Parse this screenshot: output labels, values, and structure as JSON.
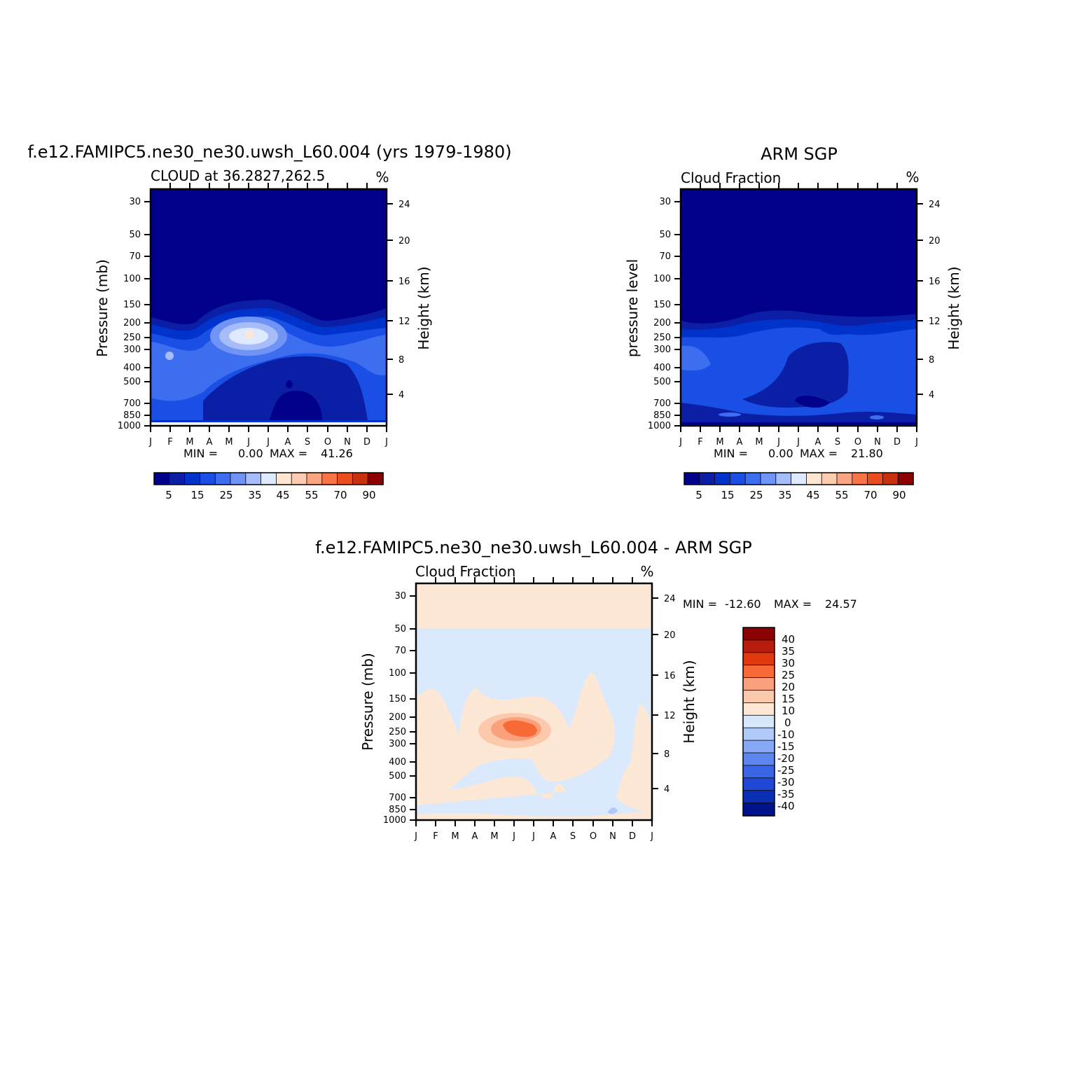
{
  "chart_data": [
    {
      "type": "heatmap",
      "title": "f.e12.FAMIPC5.ne30_ne30.uwsh_L60.004 (yrs 1979-1980)",
      "subtitle": "CLOUD at 36.2827,262.5",
      "units": "%",
      "ylabel": "Pressure (mb)",
      "ylabel_right": "Height (km)",
      "x_ticks": [
        "J",
        "F",
        "M",
        "A",
        "M",
        "J",
        "J",
        "A",
        "S",
        "O",
        "N",
        "D",
        "J"
      ],
      "y_ticks": [
        "30",
        "50",
        "70",
        "100",
        "150",
        "200",
        "250",
        "300",
        "400",
        "500",
        "700",
        "850",
        "1000"
      ],
      "y_ticks_right": [
        "24",
        "20",
        "16",
        "12",
        "8",
        "4"
      ],
      "stats": {
        "min_label": "MIN =",
        "min": "0.00",
        "max_label": "MAX =",
        "max": "41.26"
      },
      "colorbar_labels": [
        "5",
        "15",
        "25",
        "35",
        "45",
        "55",
        "70",
        "90"
      ],
      "features": [
        {
          "month": 5.0,
          "pressure": 250,
          "value": 41.26
        },
        {
          "month": 1.0,
          "pressure": 350,
          "value": 30
        },
        {
          "month": 7.0,
          "pressure": 700,
          "value": 0
        }
      ]
    },
    {
      "type": "heatmap",
      "title": "ARM SGP",
      "subtitle": "Cloud Fraction",
      "units": "%",
      "ylabel": "pressure level",
      "ylabel_right": "Height (km)",
      "x_ticks": [
        "J",
        "F",
        "M",
        "A",
        "M",
        "J",
        "J",
        "A",
        "S",
        "O",
        "N",
        "D",
        "J"
      ],
      "y_ticks": [
        "30",
        "50",
        "70",
        "100",
        "150",
        "200",
        "250",
        "300",
        "400",
        "500",
        "700",
        "850",
        "1000"
      ],
      "y_ticks_right": [
        "24",
        "20",
        "16",
        "12",
        "8",
        "4"
      ],
      "stats": {
        "min_label": "MIN =",
        "min": "0.00",
        "max_label": "MAX =",
        "max": "21.80"
      },
      "colorbar_labels": [
        "5",
        "15",
        "25",
        "35",
        "45",
        "55",
        "70",
        "90"
      ],
      "features": [
        {
          "month": 0.8,
          "pressure": 400,
          "value": 21.8
        },
        {
          "month": 6.0,
          "pressure": 700,
          "value": 2
        }
      ]
    },
    {
      "type": "heatmap",
      "title": "f.e12.FAMIPC5.ne30_ne30.uwsh_L60.004 - ARM SGP",
      "subtitle": "Cloud Fraction",
      "units": "%",
      "ylabel": "Pressure (mb)",
      "ylabel_right": "Height (km)",
      "x_ticks": [
        "J",
        "F",
        "M",
        "A",
        "M",
        "J",
        "J",
        "A",
        "S",
        "O",
        "N",
        "D",
        "J"
      ],
      "y_ticks": [
        "30",
        "50",
        "70",
        "100",
        "150",
        "200",
        "250",
        "300",
        "400",
        "500",
        "700",
        "850",
        "1000"
      ],
      "y_ticks_right": [
        "24",
        "20",
        "16",
        "12",
        "8",
        "4"
      ],
      "stats": {
        "min_label": "MIN =",
        "min": "-12.60",
        "max_label": "MAX =",
        "max": "24.57"
      },
      "colorbar_labels": [
        "40",
        "35",
        "30",
        "25",
        "20",
        "15",
        "10",
        "0",
        "-10",
        "-15",
        "-20",
        "-25",
        "-30",
        "-35",
        "-40"
      ],
      "features": [
        {
          "month": 5.0,
          "pressure": 250,
          "value": 24.57
        },
        {
          "month": 10.0,
          "pressure": 900,
          "value": -12.6
        }
      ]
    }
  ],
  "colors": {
    "seq": [
      "#00008b",
      "#0a1fa5",
      "#0033cc",
      "#1a4fe6",
      "#3d6ef0",
      "#7094f5",
      "#a6bdfa",
      "#dde9ff",
      "#fde6d2",
      "#fccbb0",
      "#fba482",
      "#f87446",
      "#ec4d1f",
      "#c9300d",
      "#8b0000"
    ],
    "div": [
      "#8b0000",
      "#b81c0c",
      "#e0380f",
      "#f86a35",
      "#fba07c",
      "#fdc9ac",
      "#fde8d6",
      "#d7e8fd",
      "#b0caf8",
      "#87a8f4",
      "#5e86ee",
      "#3a66e6",
      "#1f48d6",
      "#0a2eb4",
      "#00118c"
    ],
    "axis": "#000000"
  }
}
